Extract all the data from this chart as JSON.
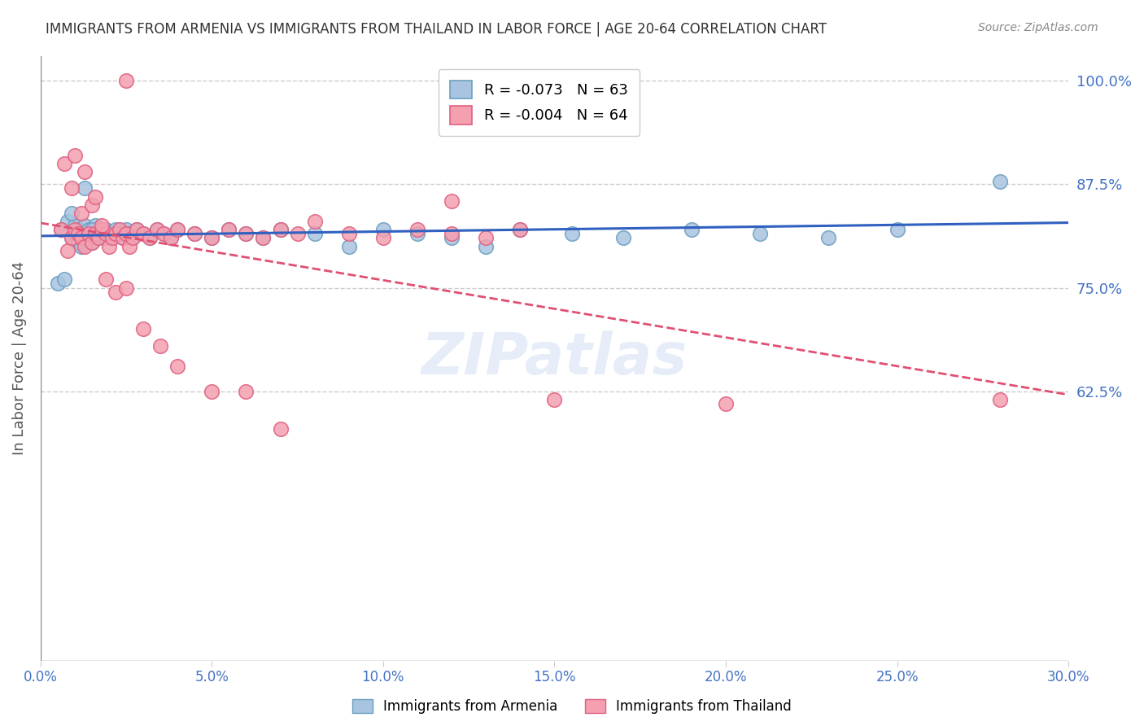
{
  "title": "IMMIGRANTS FROM ARMENIA VS IMMIGRANTS FROM THAILAND IN LABOR FORCE | AGE 20-64 CORRELATION CHART",
  "source": "Source: ZipAtlas.com",
  "ylabel": "In Labor Force | Age 20-64",
  "xlim": [
    0.0,
    0.3
  ],
  "ylim": [
    0.3,
    1.03
  ],
  "xticks": [
    0.0,
    0.05,
    0.1,
    0.15,
    0.2,
    0.25,
    0.3
  ],
  "xticklabels": [
    "0.0%",
    "5.0%",
    "10.0%",
    "15.0%",
    "20.0%",
    "25.0%",
    "30.0%"
  ],
  "yticks": [
    0.625,
    0.75,
    0.875,
    1.0
  ],
  "yticklabels": [
    "62.5%",
    "75.0%",
    "87.5%",
    "100.0%"
  ],
  "legend_armenia": "R = -0.073   N = 63",
  "legend_thailand": "R = -0.004   N = 64",
  "armenia_color": "#a8c4e0",
  "armenia_edge": "#6a9fc0",
  "thailand_color": "#f4a0b0",
  "thailand_edge": "#e06080",
  "armenia_line_color": "#3060c0",
  "thailand_line_color": "#e05070",
  "grid_color": "#cccccc",
  "background_color": "#ffffff",
  "title_color": "#333333",
  "axis_label_color": "#555555",
  "tick_label_color": "#4472c4",
  "watermark": "ZIPatlas",
  "armenia_x": [
    0.006,
    0.008,
    0.009,
    0.01,
    0.01,
    0.011,
    0.011,
    0.012,
    0.012,
    0.013,
    0.013,
    0.014,
    0.014,
    0.015,
    0.015,
    0.016,
    0.016,
    0.017,
    0.017,
    0.018,
    0.018,
    0.019,
    0.019,
    0.02,
    0.021,
    0.022,
    0.023,
    0.024,
    0.025,
    0.026,
    0.027,
    0.028,
    0.03,
    0.032,
    0.034,
    0.036,
    0.038,
    0.04,
    0.045,
    0.05,
    0.055,
    0.06,
    0.065,
    0.07,
    0.08,
    0.09,
    0.1,
    0.11,
    0.12,
    0.13,
    0.14,
    0.155,
    0.17,
    0.19,
    0.21,
    0.23,
    0.25,
    0.005,
    0.007,
    0.009,
    0.013,
    0.015,
    0.28
  ],
  "armenia_y": [
    0.82,
    0.83,
    0.81,
    0.815,
    0.825,
    0.805,
    0.82,
    0.8,
    0.815,
    0.81,
    0.825,
    0.815,
    0.82,
    0.81,
    0.805,
    0.82,
    0.825,
    0.815,
    0.81,
    0.82,
    0.815,
    0.81,
    0.82,
    0.815,
    0.81,
    0.82,
    0.815,
    0.81,
    0.82,
    0.815,
    0.81,
    0.82,
    0.815,
    0.81,
    0.82,
    0.815,
    0.81,
    0.82,
    0.815,
    0.81,
    0.82,
    0.815,
    0.81,
    0.82,
    0.815,
    0.8,
    0.82,
    0.815,
    0.81,
    0.8,
    0.82,
    0.815,
    0.81,
    0.82,
    0.815,
    0.81,
    0.82,
    0.755,
    0.76,
    0.84,
    0.87,
    0.82,
    0.878
  ],
  "thailand_x": [
    0.006,
    0.008,
    0.009,
    0.01,
    0.011,
    0.012,
    0.013,
    0.014,
    0.015,
    0.016,
    0.017,
    0.018,
    0.019,
    0.02,
    0.021,
    0.022,
    0.023,
    0.024,
    0.025,
    0.026,
    0.027,
    0.028,
    0.03,
    0.032,
    0.034,
    0.036,
    0.038,
    0.04,
    0.045,
    0.05,
    0.055,
    0.06,
    0.065,
    0.07,
    0.075,
    0.08,
    0.09,
    0.1,
    0.11,
    0.12,
    0.13,
    0.14,
    0.009,
    0.012,
    0.015,
    0.018,
    0.007,
    0.01,
    0.013,
    0.016,
    0.019,
    0.022,
    0.025,
    0.03,
    0.035,
    0.04,
    0.05,
    0.06,
    0.07,
    0.12,
    0.15,
    0.2,
    0.025,
    0.28
  ],
  "thailand_y": [
    0.82,
    0.795,
    0.81,
    0.82,
    0.815,
    0.81,
    0.8,
    0.815,
    0.805,
    0.815,
    0.81,
    0.82,
    0.815,
    0.8,
    0.81,
    0.815,
    0.82,
    0.81,
    0.815,
    0.8,
    0.81,
    0.82,
    0.815,
    0.81,
    0.82,
    0.815,
    0.81,
    0.82,
    0.815,
    0.81,
    0.82,
    0.815,
    0.81,
    0.82,
    0.815,
    0.83,
    0.815,
    0.81,
    0.82,
    0.815,
    0.81,
    0.82,
    0.87,
    0.84,
    0.85,
    0.825,
    0.9,
    0.91,
    0.89,
    0.86,
    0.76,
    0.745,
    0.75,
    0.7,
    0.68,
    0.655,
    0.625,
    0.625,
    0.58,
    0.855,
    0.615,
    0.61,
    1.0,
    0.615
  ]
}
